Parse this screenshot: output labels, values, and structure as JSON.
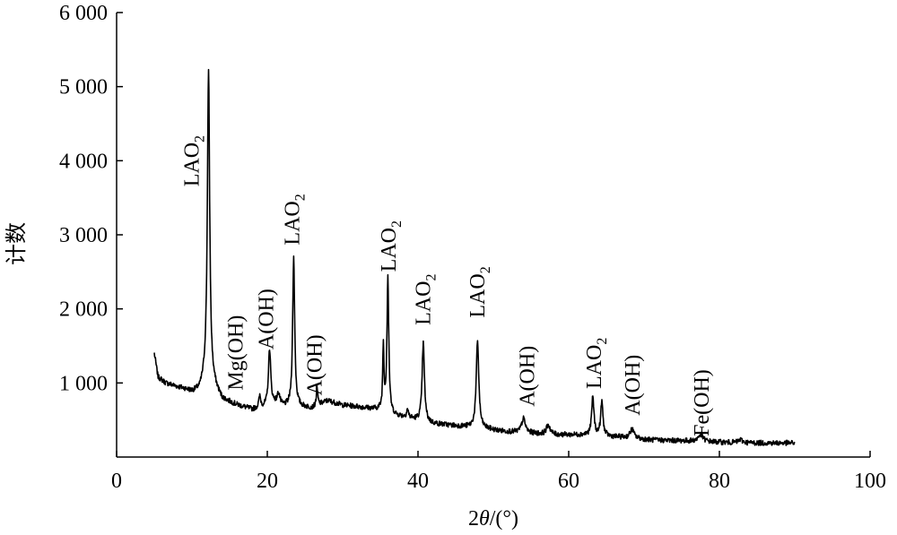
{
  "chart_data": {
    "type": "line",
    "title": "",
    "xlabel_parts": [
      "2",
      "θ",
      "/(°)"
    ],
    "ylabel": "计数",
    "xlim": [
      0,
      100
    ],
    "ylim": [
      0,
      6000
    ],
    "x_ticks": [
      0,
      20,
      40,
      60,
      80,
      100
    ],
    "y_ticks": [
      1000,
      2000,
      3000,
      4000,
      5000,
      6000
    ],
    "x_tick_labels": [
      "0",
      "20",
      "40",
      "60",
      "80",
      "100"
    ],
    "y_tick_labels": [
      "1 000",
      "2 000",
      "3 000",
      "4 000",
      "5 000",
      "6 000"
    ],
    "grid": false,
    "legend": "none",
    "line_color": "#000000",
    "baseline": [
      [
        5,
        1400
      ],
      [
        5.5,
        1080
      ],
      [
        6.5,
        1000
      ],
      [
        8,
        950
      ],
      [
        9,
        920
      ],
      [
        10,
        880
      ],
      [
        11,
        900
      ],
      [
        12,
        1100
      ],
      [
        14,
        780
      ],
      [
        16,
        700
      ],
      [
        18,
        640
      ],
      [
        20,
        680
      ],
      [
        21,
        720
      ],
      [
        22,
        680
      ],
      [
        24,
        680
      ],
      [
        26,
        660
      ],
      [
        28,
        760
      ],
      [
        30,
        700
      ],
      [
        32,
        680
      ],
      [
        34,
        650
      ],
      [
        35,
        640
      ],
      [
        37,
        560
      ],
      [
        39,
        520
      ],
      [
        42,
        450
      ],
      [
        45,
        420
      ],
      [
        47,
        400
      ],
      [
        49,
        380
      ],
      [
        51,
        350
      ],
      [
        55,
        320
      ],
      [
        58,
        300
      ],
      [
        62,
        300
      ],
      [
        65,
        280
      ],
      [
        68,
        260
      ],
      [
        71,
        230
      ],
      [
        75,
        220
      ],
      [
        80,
        200
      ],
      [
        85,
        190
      ],
      [
        90,
        190
      ]
    ],
    "peaks": [
      {
        "x": 12.2,
        "h": 4150,
        "w": 0.18
      },
      {
        "x": 19.0,
        "h": 150,
        "w": 0.15
      },
      {
        "x": 20.3,
        "h": 770,
        "w": 0.18
      },
      {
        "x": 21.5,
        "h": 150,
        "w": 0.2
      },
      {
        "x": 23.5,
        "h": 2020,
        "w": 0.16
      },
      {
        "x": 26.6,
        "h": 230,
        "w": 0.12
      },
      {
        "x": 35.4,
        "h": 860,
        "w": 0.1
      },
      {
        "x": 36.0,
        "h": 1840,
        "w": 0.14
      },
      {
        "x": 38.6,
        "h": 110,
        "w": 0.15
      },
      {
        "x": 40.7,
        "h": 1060,
        "w": 0.18
      },
      {
        "x": 47.9,
        "h": 1180,
        "w": 0.2
      },
      {
        "x": 54.0,
        "h": 190,
        "w": 0.3
      },
      {
        "x": 57.3,
        "h": 130,
        "w": 0.3
      },
      {
        "x": 63.2,
        "h": 520,
        "w": 0.18
      },
      {
        "x": 64.4,
        "h": 460,
        "w": 0.18
      },
      {
        "x": 68.4,
        "h": 120,
        "w": 0.3
      },
      {
        "x": 77.5,
        "h": 90,
        "w": 0.4
      },
      {
        "x": 82.8,
        "h": 40,
        "w": 0.3
      }
    ],
    "annotations": [
      {
        "main": "LAO",
        "sub": "2",
        "x": 10.9,
        "y": 3650
      },
      {
        "main": "Mg(OH)",
        "sub": "",
        "x": 16.7,
        "y": 900
      },
      {
        "main": "A(OH)",
        "sub": "",
        "x": 20.8,
        "y": 1450
      },
      {
        "main": "LAO",
        "sub": "2",
        "x": 24.2,
        "y": 2860
      },
      {
        "main": "A(OH)",
        "sub": "",
        "x": 27.2,
        "y": 830
      },
      {
        "main": "LAO",
        "sub": "2",
        "x": 37.0,
        "y": 2500
      },
      {
        "main": "LAO",
        "sub": "2",
        "x": 41.6,
        "y": 1780
      },
      {
        "main": "LAO",
        "sub": "2",
        "x": 48.8,
        "y": 1880
      },
      {
        "main": "A(OH)",
        "sub": "",
        "x": 55.4,
        "y": 680
      },
      {
        "main": "LAO",
        "sub": "2",
        "x": 64.3,
        "y": 920
      },
      {
        "main": "A(OH)",
        "sub": "",
        "x": 69.4,
        "y": 560
      },
      {
        "main": "Fe(OH)",
        "sub": "",
        "x": 78.6,
        "y": 280
      }
    ]
  }
}
